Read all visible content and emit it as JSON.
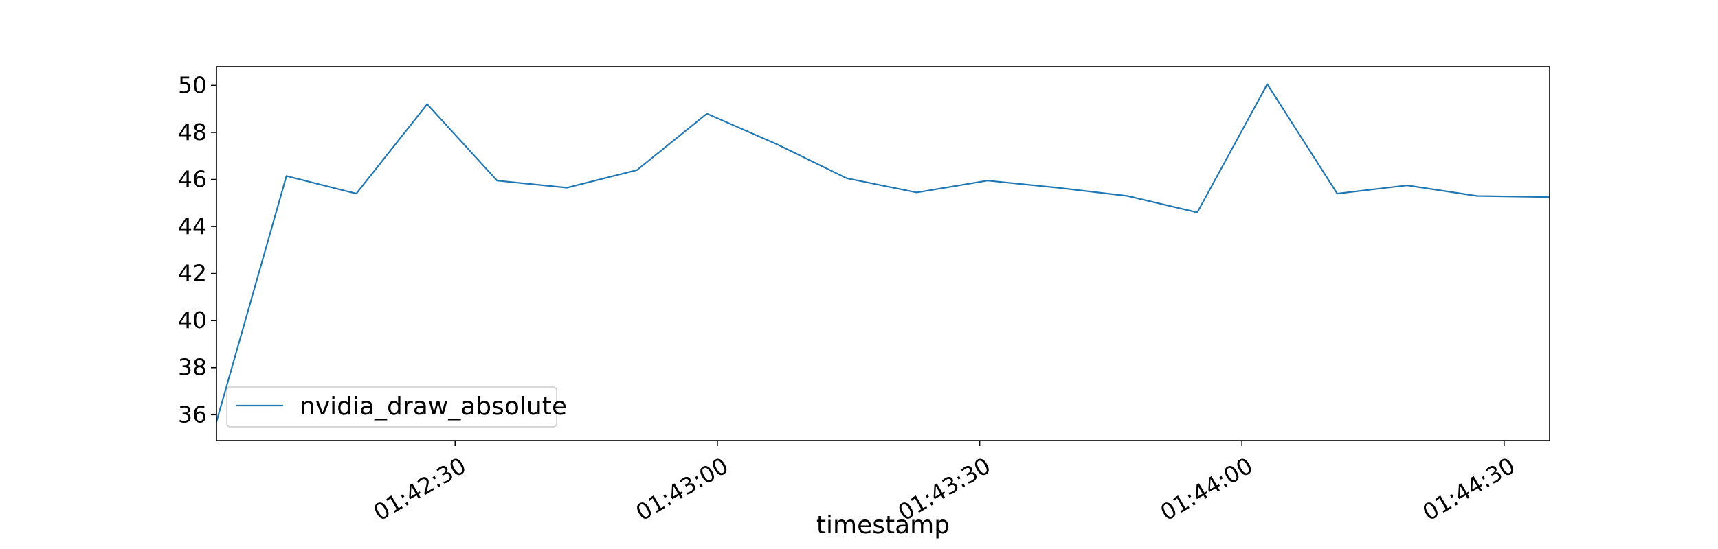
{
  "chart_data": {
    "type": "line",
    "title": "",
    "xlabel": "timestamp",
    "ylabel": "",
    "x_tick_labels": [
      "01:42:30",
      "01:43:00",
      "01:43:30",
      "01:44:00",
      "01:44:30"
    ],
    "x_tick_seconds": [
      150,
      180,
      210,
      240,
      270
    ],
    "y_ticks": [
      36,
      38,
      40,
      42,
      44,
      46,
      48,
      50
    ],
    "ylim": [
      34.9,
      50.8
    ],
    "xlim_seconds": [
      122.7,
      275.2
    ],
    "grid": false,
    "legend_placement": "lower-left",
    "series": [
      {
        "name": "nvidia_draw_absolute",
        "color": "#1f77b4",
        "x_seconds": [
          122.7,
          130.7,
          138.7,
          146.8,
          154.8,
          162.8,
          170.8,
          178.8,
          186.8,
          194.8,
          202.8,
          210.9,
          218.9,
          226.9,
          234.9,
          242.9,
          250.9,
          258.9,
          266.9,
          275.2
        ],
        "values": [
          35.7,
          46.15,
          45.4,
          49.2,
          45.95,
          45.65,
          46.4,
          48.8,
          47.5,
          46.05,
          45.45,
          45.95,
          45.65,
          45.3,
          44.6,
          50.05,
          45.4,
          45.75,
          45.3,
          45.25
        ]
      }
    ]
  }
}
